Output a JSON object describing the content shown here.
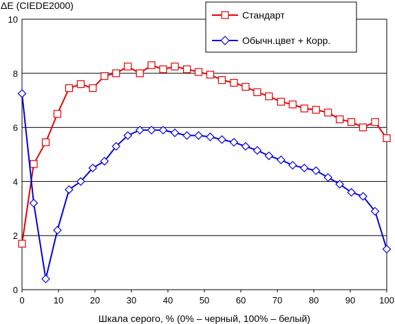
{
  "chart_data": {
    "type": "line",
    "ylabel": "ΔE (CIEDE2000)",
    "xlabel": "Шкала серого, % (0% – черный, 100% – белый)",
    "xlim": [
      0,
      100
    ],
    "ylim": [
      0,
      10
    ],
    "x_ticks": [
      "0",
      "10",
      "20",
      "30",
      "40",
      "50",
      "60",
      "70",
      "80",
      "90",
      "100"
    ],
    "y_ticks": [
      "0",
      "2",
      "4",
      "6",
      "8",
      "10"
    ],
    "grid": "horizontal",
    "legend_position": "top-right",
    "x": [
      0,
      3.2,
      6.5,
      9.7,
      12.9,
      16.1,
      19.4,
      22.6,
      25.8,
      29,
      32.3,
      35.5,
      38.7,
      41.9,
      45.2,
      48.4,
      51.6,
      54.8,
      58.1,
      61.3,
      64.5,
      67.7,
      71,
      74.2,
      77.4,
      80.6,
      83.9,
      87.1,
      90.3,
      93.5,
      96.8,
      100
    ],
    "series": [
      {
        "name": "Стандарт",
        "color": "#e00000",
        "marker": "square",
        "values": [
          1.7,
          4.65,
          5.45,
          6.5,
          7.45,
          7.6,
          7.45,
          7.9,
          8.0,
          8.25,
          8.0,
          8.3,
          8.15,
          8.25,
          8.15,
          8.05,
          7.95,
          7.75,
          7.65,
          7.5,
          7.3,
          7.15,
          6.95,
          6.85,
          6.7,
          6.65,
          6.55,
          6.3,
          6.2,
          6.0,
          6.2,
          5.6
        ]
      },
      {
        "name": "Обычн.цвет + Корр.",
        "color": "#0000dd",
        "marker": "diamond",
        "values": [
          7.25,
          3.2,
          0.4,
          2.2,
          3.7,
          4.0,
          4.5,
          4.75,
          5.3,
          5.7,
          5.9,
          5.9,
          5.9,
          5.8,
          5.7,
          5.7,
          5.65,
          5.55,
          5.45,
          5.3,
          5.15,
          4.95,
          4.8,
          4.6,
          4.5,
          4.4,
          4.15,
          3.9,
          3.6,
          3.45,
          2.9,
          1.5
        ]
      }
    ]
  }
}
